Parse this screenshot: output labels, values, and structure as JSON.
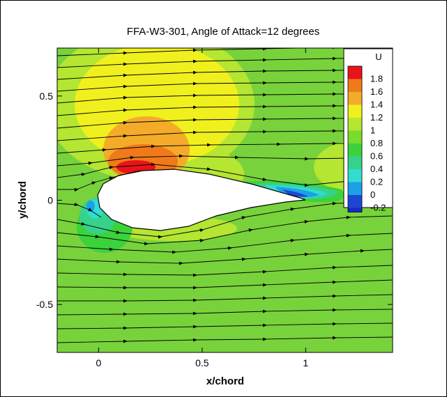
{
  "chart_data": {
    "type": "contour",
    "title": "FFA-W3-301, Angle of Attack=12 degrees",
    "xlabel": "x/chord",
    "ylabel": "y/chord",
    "xlim": [
      -0.2,
      1.42
    ],
    "ylim": [
      -0.73,
      0.73
    ],
    "xticks": [
      {
        "value": 0,
        "label": "0"
      },
      {
        "value": 0.5,
        "label": "0.5"
      },
      {
        "value": 1,
        "label": "1"
      }
    ],
    "yticks": [
      {
        "value": 0.5,
        "label": "0.5"
      },
      {
        "value": 0,
        "label": "0"
      },
      {
        "value": -0.5,
        "label": "-0.5"
      }
    ],
    "field": "U",
    "legend": {
      "title": "U",
      "position": "top-right",
      "levels": [
        {
          "label": "1.8",
          "color": "#e8141a"
        },
        {
          "label": "1.6",
          "color": "#f07a1a"
        },
        {
          "label": "1.4",
          "color": "#f5ab2a"
        },
        {
          "label": "1.2",
          "color": "#f0f01e"
        },
        {
          "label": "1",
          "color": "#b4e632"
        },
        {
          "label": "0.8",
          "color": "#78dc2c"
        },
        {
          "label": "0.6",
          "color": "#3cd23c"
        },
        {
          "label": "0.4",
          "color": "#36d28c"
        },
        {
          "label": "0.2",
          "color": "#32dcd2"
        },
        {
          "label": "0",
          "color": "#1ea0e6"
        },
        {
          "label": "-0.2",
          "color": "#1e46d2"
        }
      ],
      "bottom_color": "#1428c8"
    },
    "background_color": "#78d23c",
    "airfoil_angle_of_attack_deg": 12,
    "streamlines": true
  }
}
